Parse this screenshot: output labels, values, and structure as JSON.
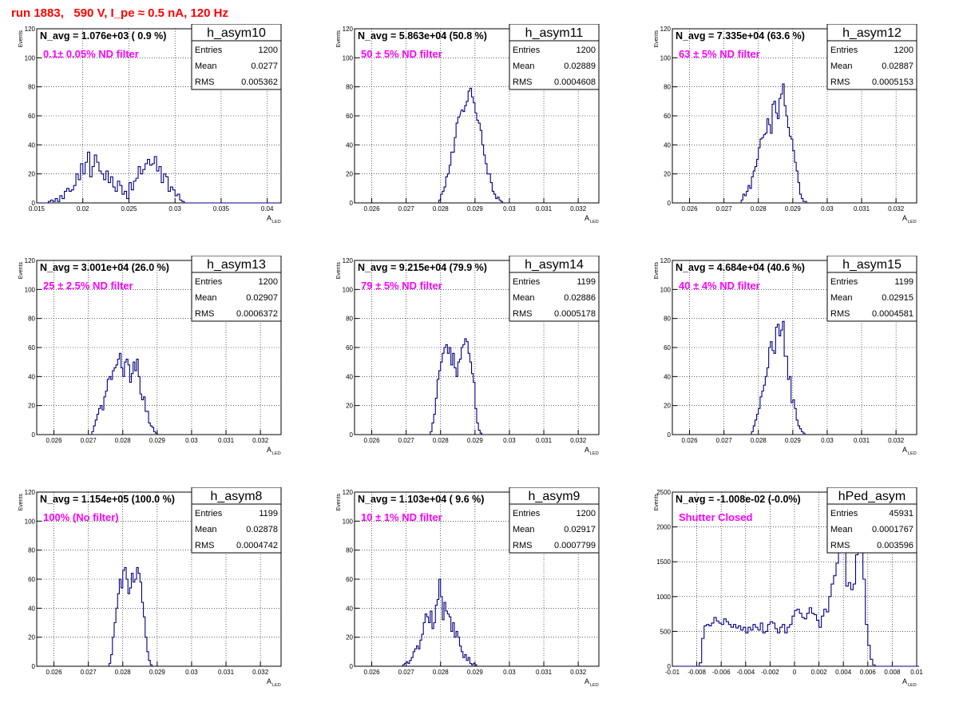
{
  "run_title": "run 1883,   590 V, I_pe ≈ 0.5 nA, 120 Hz",
  "colors": {
    "histogram": "#000080",
    "title": "#ff0000",
    "filter_label": "#ff00ff",
    "text": "#000000"
  },
  "stats_labels": {
    "entries": "Entries",
    "mean": "Mean",
    "rms": "RMS"
  },
  "chart_data": [
    {
      "type": "histogram",
      "name": "h_asym10",
      "entries": "1200",
      "mean": "0.0277",
      "rms": "0.005362",
      "navg": "N_avg = 1.076e+03 ( 0.9 %)",
      "filter": "0.1± 0.05% ND filter",
      "ylabel": "Events",
      "xlabel": "A",
      "xlabel_sub": "LED",
      "xlim": [
        0.015,
        0.0415
      ],
      "ylim": [
        0,
        120
      ],
      "xticks": [
        0.015,
        0.02,
        0.025,
        0.03,
        0.035,
        0.04
      ],
      "xtick_labels": [
        "0.015",
        "0.02",
        "0.025",
        "0.03",
        "0.035",
        "0.04"
      ],
      "yticks": [
        0,
        20,
        40,
        60,
        80,
        100,
        120
      ],
      "ytick_labels": [
        "0",
        "20",
        "40",
        "60",
        "80",
        "100",
        "120"
      ],
      "bin_start": 0.015,
      "bin_width": 0.00025,
      "counts": [
        0,
        0,
        0,
        0,
        0,
        1,
        2,
        1,
        3,
        1,
        5,
        3,
        8,
        10,
        8,
        9,
        12,
        20,
        16,
        27,
        20,
        28,
        35,
        18,
        25,
        33,
        28,
        22,
        20,
        16,
        22,
        14,
        18,
        11,
        8,
        15,
        12,
        6,
        8,
        3,
        14,
        9,
        15,
        17,
        25,
        20,
        23,
        27,
        30,
        26,
        27,
        32,
        22,
        25,
        14,
        20,
        18,
        8,
        11,
        9,
        5,
        6,
        2,
        1,
        0,
        0,
        0,
        0,
        0,
        0,
        0,
        0,
        0,
        0,
        0,
        0,
        0,
        0,
        0,
        0,
        0,
        0,
        0,
        0,
        0,
        0,
        0,
        0,
        0,
        0,
        0,
        0,
        0,
        0,
        0,
        0,
        0,
        0,
        0,
        0,
        0,
        0,
        0,
        0,
        0
      ]
    },
    {
      "type": "histogram",
      "name": "h_asym11",
      "entries": "1200",
      "mean": "0.02889",
      "rms": "0.0004608",
      "navg": "N_avg = 5.863e+04 (50.8 %)",
      "filter": "50 ± 5% ND filter",
      "ylabel": "Events",
      "xlabel": "A",
      "xlabel_sub": "LED",
      "xlim": [
        0.0255,
        0.0326
      ],
      "ylim": [
        0,
        120
      ],
      "xticks": [
        0.026,
        0.027,
        0.028,
        0.029,
        0.03,
        0.031,
        0.032
      ],
      "xtick_labels": [
        "0.026",
        "0.027",
        "0.028",
        "0.029",
        "0.03",
        "0.031",
        "0.032"
      ],
      "yticks": [
        0,
        20,
        40,
        60,
        80,
        100,
        120
      ],
      "ytick_labels": [
        "0",
        "20",
        "40",
        "60",
        "80",
        "100",
        "120"
      ],
      "bin_start": 0.0255,
      "bin_width": 5e-05,
      "counts": [
        0,
        0,
        0,
        0,
        0,
        0,
        0,
        0,
        0,
        0,
        0,
        0,
        0,
        0,
        0,
        0,
        0,
        0,
        0,
        0,
        0,
        0,
        0,
        0,
        0,
        0,
        0,
        0,
        0,
        0,
        0,
        0,
        0,
        0,
        0,
        0,
        0,
        0,
        0,
        0,
        0,
        0,
        0,
        0,
        0,
        0,
        0,
        0,
        0,
        0,
        0,
        0,
        0,
        0,
        0,
        0,
        0,
        0,
        0,
        0,
        0,
        0,
        0,
        0,
        0,
        0,
        0,
        0,
        0,
        0,
        0,
        0,
        0,
        0,
        0,
        0,
        0,
        0,
        0,
        0,
        0,
        0,
        0,
        0,
        0,
        0,
        0,
        0,
        0,
        0,
        0,
        0,
        0,
        0,
        0,
        0,
        0,
        0,
        0,
        0,
        0,
        0,
        0,
        0,
        0,
        0,
        0,
        0,
        0,
        0,
        0,
        0,
        0,
        0,
        0,
        0,
        0,
        0,
        0,
        0,
        0,
        0,
        0,
        0,
        0,
        0,
        0,
        0,
        0,
        0,
        0,
        0,
        0,
        0,
        0,
        0,
        0,
        0,
        0,
        0,
        0
      ]
    },
    {
      "type": "histogram",
      "name": "h_asym12",
      "entries": "1200",
      "mean": "0.02887",
      "rms": "0.0005153",
      "navg": "N_avg = 7.335e+04 (63.6 %)",
      "filter": "63 ± 5% ND filter",
      "ylabel": "Events",
      "xlabel": "A",
      "xlabel_sub": "LED",
      "xlim": [
        0.0255,
        0.0326
      ],
      "ylim": [
        0,
        120
      ],
      "xticks": [
        0.026,
        0.027,
        0.028,
        0.029,
        0.03,
        0.031,
        0.032
      ],
      "xtick_labels": [
        "0.026",
        "0.027",
        "0.028",
        "0.029",
        "0.03",
        "0.031",
        "0.032"
      ],
      "yticks": [
        0,
        20,
        40,
        60,
        80,
        100,
        120
      ],
      "ytick_labels": [
        "0",
        "20",
        "40",
        "60",
        "80",
        "100",
        "120"
      ],
      "bin_start": 0.0255,
      "bin_width": 5e-05,
      "counts": []
    },
    {
      "type": "histogram",
      "name": "h_asym13",
      "entries": "1200",
      "mean": "0.02907",
      "rms": "0.0006372",
      "navg": "N_avg = 3.001e+04 (26.0 %)",
      "filter": "25 ± 2.5% ND filter",
      "ylabel": "Events",
      "xlabel": "A",
      "xlabel_sub": "LED",
      "xlim": [
        0.0255,
        0.0326
      ],
      "ylim": [
        0,
        120
      ],
      "xticks": [
        0.026,
        0.027,
        0.028,
        0.029,
        0.03,
        0.031,
        0.032
      ],
      "xtick_labels": [
        "0.026",
        "0.027",
        "0.028",
        "0.029",
        "0.03",
        "0.031",
        "0.032"
      ],
      "yticks": [
        0,
        20,
        40,
        60,
        80,
        100,
        120
      ],
      "ytick_labels": [
        "0",
        "20",
        "40",
        "60",
        "80",
        "100",
        "120"
      ],
      "bin_start": 0.0255,
      "bin_width": 5e-05,
      "counts": []
    },
    {
      "type": "histogram",
      "name": "h_asym14",
      "entries": "1199",
      "mean": "0.02886",
      "rms": "0.0005178",
      "navg": "N_avg = 9.215e+04 (79.9 %)",
      "filter": "79 ± 5% ND filter",
      "ylabel": "Events",
      "xlabel": "A",
      "xlabel_sub": "LED",
      "xlim": [
        0.0255,
        0.0326
      ],
      "ylim": [
        0,
        120
      ],
      "xticks": [
        0.026,
        0.027,
        0.028,
        0.029,
        0.03,
        0.031,
        0.032
      ],
      "xtick_labels": [
        "0.026",
        "0.027",
        "0.028",
        "0.029",
        "0.03",
        "0.031",
        "0.032"
      ],
      "yticks": [
        0,
        20,
        40,
        60,
        80,
        100,
        120
      ],
      "ytick_labels": [
        "0",
        "20",
        "40",
        "60",
        "80",
        "100",
        "120"
      ],
      "bin_start": 0.0255,
      "bin_width": 5e-05,
      "counts": []
    },
    {
      "type": "histogram",
      "name": "h_asym15",
      "entries": "1199",
      "mean": "0.02915",
      "rms": "0.0004581",
      "navg": "N_avg = 4.684e+04 (40.6 %)",
      "filter": "40 ± 4% ND filter",
      "ylabel": "Events",
      "xlabel": "A",
      "xlabel_sub": "LED",
      "xlim": [
        0.0255,
        0.0326
      ],
      "ylim": [
        0,
        120
      ],
      "xticks": [
        0.026,
        0.027,
        0.028,
        0.029,
        0.03,
        0.031,
        0.032
      ],
      "xtick_labels": [
        "0.026",
        "0.027",
        "0.028",
        "0.029",
        "0.03",
        "0.031",
        "0.032"
      ],
      "yticks": [
        0,
        20,
        40,
        60,
        80,
        100,
        120
      ],
      "ytick_labels": [
        "0",
        "20",
        "40",
        "60",
        "80",
        "100",
        "120"
      ],
      "bin_start": 0.0255,
      "bin_width": 5e-05,
      "counts": []
    },
    {
      "type": "histogram",
      "name": "h_asym8",
      "entries": "1199",
      "mean": "0.02878",
      "rms": "0.0004742",
      "navg": "N_avg = 1.154e+05 (100.0 %)",
      "filter": "100% (No filter)",
      "ylabel": "Events",
      "xlabel": "A",
      "xlabel_sub": "LED",
      "xlim": [
        0.0255,
        0.0326
      ],
      "ylim": [
        0,
        120
      ],
      "xticks": [
        0.026,
        0.027,
        0.028,
        0.029,
        0.03,
        0.031,
        0.032
      ],
      "xtick_labels": [
        "0.026",
        "0.027",
        "0.028",
        "0.029",
        "0.03",
        "0.031",
        "0.032"
      ],
      "yticks": [
        0,
        20,
        40,
        60,
        80,
        100,
        120
      ],
      "ytick_labels": [
        "0",
        "20",
        "40",
        "60",
        "80",
        "100",
        "120"
      ],
      "bin_start": 0.0255,
      "bin_width": 5e-05,
      "counts": []
    },
    {
      "type": "histogram",
      "name": "h_asym9",
      "entries": "1200",
      "mean": "0.02917",
      "rms": "0.0007799",
      "navg": "N_avg = 1.103e+04 ( 9.6 %)",
      "filter": "10 ± 1% ND filter",
      "ylabel": "Events",
      "xlabel": "A",
      "xlabel_sub": "LED",
      "xlim": [
        0.0255,
        0.0326
      ],
      "ylim": [
        0,
        120
      ],
      "xticks": [
        0.026,
        0.027,
        0.028,
        0.029,
        0.03,
        0.031,
        0.032
      ],
      "xtick_labels": [
        "0.026",
        "0.027",
        "0.028",
        "0.029",
        "0.03",
        "0.031",
        "0.032"
      ],
      "yticks": [
        0,
        20,
        40,
        60,
        80,
        100,
        120
      ],
      "ytick_labels": [
        "0",
        "20",
        "40",
        "60",
        "80",
        "100",
        "120"
      ],
      "bin_start": 0.0255,
      "bin_width": 5e-05,
      "counts": []
    },
    {
      "type": "histogram",
      "name": "hPed_asym",
      "entries": "45931",
      "mean": "0.0001767",
      "rms": "0.003596",
      "navg": "N_avg = -1.008e-02 (-0.0%)",
      "filter": "Shutter Closed",
      "ylabel": "Events",
      "xlabel": "A",
      "xlabel_sub": "LED",
      "xlim": [
        -0.01,
        0.01
      ],
      "ylim": [
        0,
        2500
      ],
      "xticks": [
        -0.01,
        -0.008,
        -0.006,
        -0.004,
        -0.002,
        0,
        0.002,
        0.004,
        0.006,
        0.008,
        0.01
      ],
      "xtick_labels": [
        "-0.01",
        "-0.008",
        "-0.006",
        "-0.004",
        "-0.002",
        "0",
        "0.002",
        "0.004",
        "0.006",
        "0.008",
        "0.01"
      ],
      "yticks": [
        0,
        500,
        1000,
        1500,
        2000,
        2500
      ],
      "ytick_labels": [
        "0",
        "500",
        "1000",
        "1500",
        "2000",
        "2500"
      ],
      "bin_start": -0.01,
      "bin_width": 0.0002,
      "counts": [
        0,
        0,
        0,
        0,
        0,
        0,
        0,
        0,
        0,
        0,
        0,
        50,
        400,
        580,
        600,
        580,
        620,
        700,
        650,
        620,
        600,
        680,
        640,
        600,
        560,
        600,
        550,
        580,
        520,
        560,
        480,
        560,
        520,
        600,
        560,
        520,
        620,
        480,
        500,
        600,
        640,
        620,
        540,
        480,
        560,
        600,
        480,
        560,
        600,
        720,
        800,
        820,
        760,
        700,
        680,
        760,
        840,
        760,
        740,
        660,
        560,
        720,
        820,
        780,
        1000,
        1180,
        1300,
        1480,
        2100,
        2200,
        1780,
        1150,
        1200,
        1100,
        1180,
        1600,
        1900,
        2000,
        1250,
        600,
        300,
        100,
        20,
        0,
        0,
        0,
        0,
        0,
        0,
        0,
        0,
        0,
        0,
        0,
        0,
        0,
        0,
        0,
        0,
        0,
        0
      ]
    }
  ]
}
